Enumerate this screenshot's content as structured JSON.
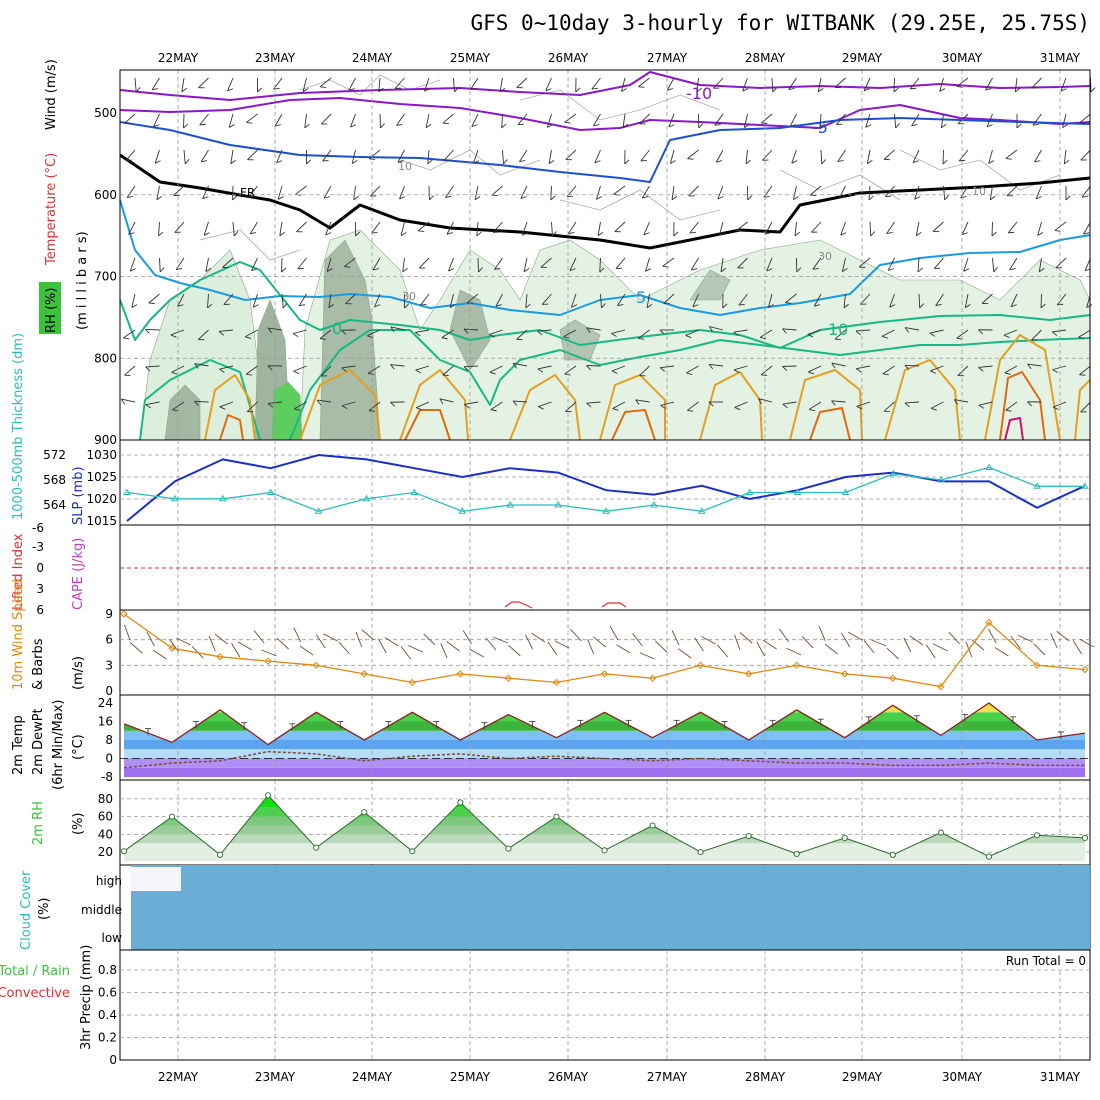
{
  "title": "GFS 0~10day 3-hourly for WITBANK (29.25E, 25.75S)",
  "dates": [
    "22MAY",
    "23MAY",
    "24MAY",
    "25MAY",
    "26MAY",
    "27MAY",
    "28MAY",
    "29MAY",
    "30MAY",
    "31MAY"
  ],
  "panels": {
    "upper": {
      "label_rh": "RH (%)",
      "label_temp": "Temperature (°C)",
      "label_wind": "Wind (m/s)",
      "label_units": "(m i l l i b a r s)",
      "yticks": [
        "500",
        "600",
        "700",
        "800",
        "900"
      ],
      "contour_labels": [
        "-10",
        "-5",
        "10",
        "10",
        "FR",
        "30",
        "30",
        "5",
        "0",
        "10"
      ]
    },
    "slp": {
      "label_thk": "1000-500mb Thickness (dm)",
      "label_slp": "SLP (mb)",
      "yticks_left": [
        "572",
        "568",
        "564"
      ],
      "yticks_right": [
        "1030",
        "1025",
        "1020",
        "1015"
      ]
    },
    "cape": {
      "label_li": "Lifted Index",
      "label_cape": "CAPE (J/kg)",
      "yticks": [
        "-6",
        "-3",
        "0",
        "3",
        "6"
      ]
    },
    "wind10": {
      "label_speed": "10m Wind Speed",
      "label_barbs": "& Barbs",
      "label_units": "(m/s)",
      "yticks": [
        "9",
        "6",
        "3",
        "0"
      ]
    },
    "temp": {
      "label_t": "2m Temp",
      "label_td": "2m DewPt",
      "label_mm": "(6hr Min/Max)",
      "label_units": "(°C)",
      "yticks": [
        "24",
        "16",
        "8",
        "0",
        "-8"
      ]
    },
    "rh": {
      "label": "2m RH",
      "label_units": "(%)",
      "yticks": [
        "80",
        "60",
        "40",
        "20"
      ]
    },
    "cloud": {
      "label": "Cloud Cover",
      "label_units": "(%)",
      "levels": [
        "high",
        "middle",
        "low"
      ]
    },
    "precip": {
      "label_total": "Total / Rain",
      "label_conv": "Convective",
      "label_units": "3hr Precip (mm)",
      "yticks": [
        "0.8",
        "0.6",
        "0.4",
        "0.2",
        "0"
      ],
      "run_total": "Run Total = 0"
    }
  },
  "colors": {
    "purple": "#8a17c9",
    "blue": "#1f4fd1",
    "lightblue": "#1a9be0",
    "green": "#16b884",
    "orange": "#e3a020",
    "slp_line": "#1b2fc6",
    "thickness_line": "#2bbcc0",
    "wind_speed": "#e08a10",
    "cloud": "#6aaed6",
    "rh_green": "#3cc23c"
  },
  "chart_data": [
    {
      "type": "line",
      "title": "1000-500mb Thickness / SLP",
      "x": [
        "21/12",
        "22/00",
        "22/12",
        "23/00",
        "23/12",
        "24/00",
        "24/12",
        "25/00",
        "25/12",
        "26/00",
        "26/12",
        "27/00",
        "27/12",
        "28/00",
        "28/12",
        "29/00",
        "29/12",
        "30/00",
        "30/12",
        "31/00",
        "31/06"
      ],
      "series": [
        {
          "name": "SLP (mb)",
          "values": [
            1015,
            1024,
            1029,
            1027,
            1030,
            1029,
            1027,
            1025,
            1027,
            1026,
            1022,
            1021,
            1023,
            1020,
            1022,
            1025,
            1026,
            1024,
            1024,
            1018,
            1023
          ]
        },
        {
          "name": "1000-500mb Thickness (dm)",
          "values": [
            566,
            565,
            565,
            566,
            563,
            565,
            566,
            563,
            564,
            564,
            563,
            564,
            563,
            566,
            566,
            566,
            569,
            568,
            570,
            567,
            567
          ]
        }
      ]
    },
    {
      "type": "line",
      "title": "10m Wind Speed",
      "x": [
        "21/12",
        "22/00",
        "22/12",
        "23/00",
        "23/12",
        "24/00",
        "24/12",
        "25/00",
        "25/12",
        "26/00",
        "26/12",
        "27/00",
        "27/12",
        "28/00",
        "28/12",
        "29/00",
        "29/12",
        "30/00",
        "30/12",
        "31/00",
        "31/06"
      ],
      "series": [
        {
          "name": "10m Wind Speed (m/s)",
          "values": [
            9,
            5,
            4,
            3.5,
            3,
            2,
            1,
            2,
            1.5,
            1,
            2,
            1.5,
            3,
            2,
            3,
            2,
            1.5,
            0.5,
            8,
            3,
            2.5
          ]
        }
      ]
    },
    {
      "type": "area",
      "title": "2m Temp / DewPt",
      "x": [
        "21/12",
        "22/00",
        "22/12",
        "23/00",
        "23/12",
        "24/00",
        "24/12",
        "25/00",
        "25/12",
        "26/00",
        "26/12",
        "27/00",
        "27/12",
        "28/00",
        "28/12",
        "29/00",
        "29/12",
        "30/00",
        "30/12",
        "31/00",
        "31/06"
      ],
      "series": [
        {
          "name": "2m Temp (°C)",
          "values": [
            15,
            7,
            21,
            6,
            20,
            8,
            20,
            8,
            19,
            9,
            20,
            9,
            20,
            8,
            21,
            9,
            23,
            10,
            24,
            8,
            11
          ]
        },
        {
          "name": "2m DewPt (°C)",
          "values": [
            -4,
            -2,
            -1,
            3,
            2,
            -1,
            1,
            2,
            0,
            1,
            0,
            -1,
            0,
            -1,
            -2,
            -2,
            -3,
            -3,
            -2,
            -3,
            -3
          ]
        }
      ]
    },
    {
      "type": "area",
      "title": "2m RH",
      "x": [
        "21/12",
        "22/00",
        "22/12",
        "23/00",
        "23/12",
        "24/00",
        "24/12",
        "25/00",
        "25/12",
        "26/00",
        "26/12",
        "27/00",
        "27/12",
        "28/00",
        "28/12",
        "29/00",
        "29/12",
        "30/00",
        "30/12",
        "31/00",
        "31/06"
      ],
      "series": [
        {
          "name": "2m RH (%)",
          "values": [
            21,
            60,
            17,
            84,
            25,
            65,
            21,
            76,
            24,
            60,
            22,
            50,
            20,
            38,
            18,
            36,
            17,
            42,
            15,
            39,
            36
          ]
        }
      ]
    },
    {
      "type": "bar",
      "title": "3hr Precip",
      "x": [
        "22MAY",
        "31MAY"
      ],
      "series": [
        {
          "name": "3hr Precip (mm)",
          "values": [
            0,
            0
          ]
        }
      ],
      "ylim": [
        0,
        1
      ]
    }
  ]
}
